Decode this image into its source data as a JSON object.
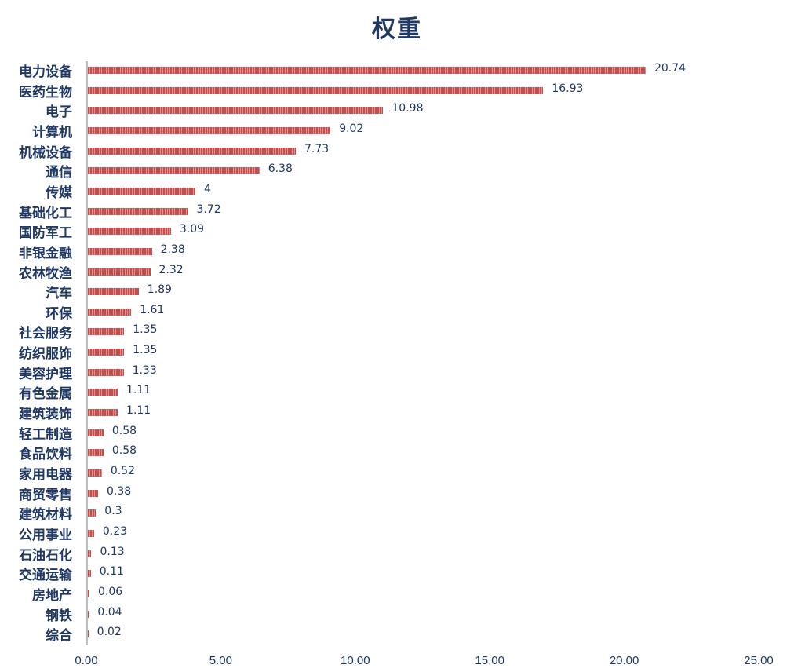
{
  "chart_data": {
    "type": "bar",
    "orientation": "horizontal",
    "title": "权重",
    "xlabel": "",
    "ylabel": "",
    "xlim": [
      0,
      25
    ],
    "xticks": [
      "0.00",
      "5.00",
      "10.00",
      "15.00",
      "20.00",
      "25.00"
    ],
    "grid": false,
    "legend": null,
    "bar_color": "#c0504d",
    "categories": [
      "电力设备",
      "医药生物",
      "电子",
      "计算机",
      "机械设备",
      "通信",
      "传媒",
      "基础化工",
      "国防军工",
      "非银金融",
      "农林牧渔",
      "汽车",
      "环保",
      "社会服务",
      "纺织服饰",
      "美容护理",
      "有色金属",
      "建筑装饰",
      "轻工制造",
      "食品饮料",
      "家用电器",
      "商贸零售",
      "建筑材料",
      "公用事业",
      "石油石化",
      "交通运输",
      "房地产",
      "钢铁",
      "综合"
    ],
    "values": [
      20.74,
      16.93,
      10.98,
      9.02,
      7.73,
      6.38,
      4,
      3.72,
      3.09,
      2.38,
      2.32,
      1.89,
      1.61,
      1.35,
      1.35,
      1.33,
      1.11,
      1.11,
      0.58,
      0.58,
      0.52,
      0.38,
      0.3,
      0.23,
      0.13,
      0.11,
      0.06,
      0.04,
      0.02
    ],
    "value_labels": [
      "20.74",
      "16.93",
      "10.98",
      "9.02",
      "7.73",
      "6.38",
      "4",
      "3.72",
      "3.09",
      "2.38",
      "2.32",
      "1.89",
      "1.61",
      "1.35",
      "1.35",
      "1.33",
      "1.11",
      "1.11",
      "0.58",
      "0.58",
      "0.52",
      "0.38",
      "0.3",
      "0.23",
      "0.13",
      "0.11",
      "0.06",
      "0.04",
      "0.02"
    ]
  }
}
